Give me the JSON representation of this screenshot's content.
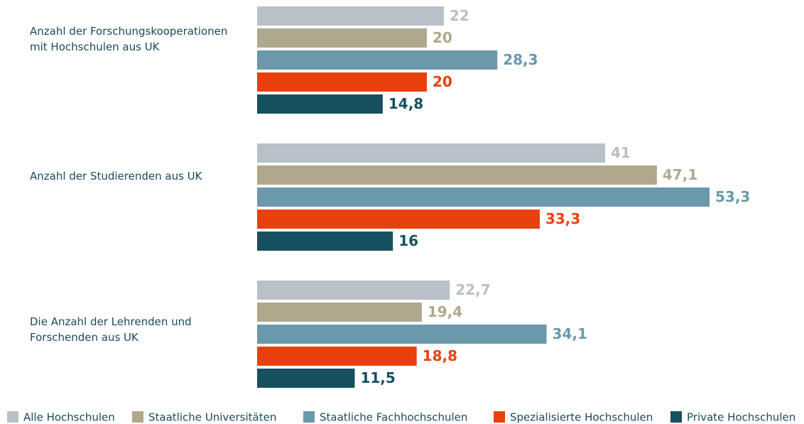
{
  "chart_data": {
    "type": "hbar",
    "categories": [
      "Anzahl der Forschungskooperationen\nmit Hochschulen aus UK",
      "Anzahl der Studierenden aus UK",
      "Die Anzahl der Lehrenden und\nForschenden aus UK"
    ],
    "series": [
      {
        "name": "Alle Hochschulen",
        "color": "#b8c0c8",
        "values": [
          22,
          41,
          22.7
        ],
        "value_labels": [
          "22",
          "41",
          "22,7"
        ]
      },
      {
        "name": "Staatliche Universitäten",
        "color": "#afa88c",
        "values": [
          20,
          47.1,
          19.4
        ],
        "value_labels": [
          "20",
          "47,1",
          "19,4"
        ]
      },
      {
        "name": "Staatliche Fachhochschulen",
        "color": "#6b98aa",
        "values": [
          28.3,
          53.3,
          34.1
        ],
        "value_labels": [
          "28,3",
          "53,3",
          "34,1"
        ]
      },
      {
        "name": "Spezialisierte Hochschulen",
        "color": "#e8410e",
        "values": [
          20,
          33.3,
          18.8
        ],
        "value_labels": [
          "20",
          "33,3",
          "18,8"
        ]
      },
      {
        "name": "Private Hochschulen",
        "color": "#17505f",
        "values": [
          14.8,
          16,
          11.5
        ],
        "value_labels": [
          "14,8",
          "16",
          "11,5"
        ]
      }
    ],
    "legend": "bottom"
  }
}
